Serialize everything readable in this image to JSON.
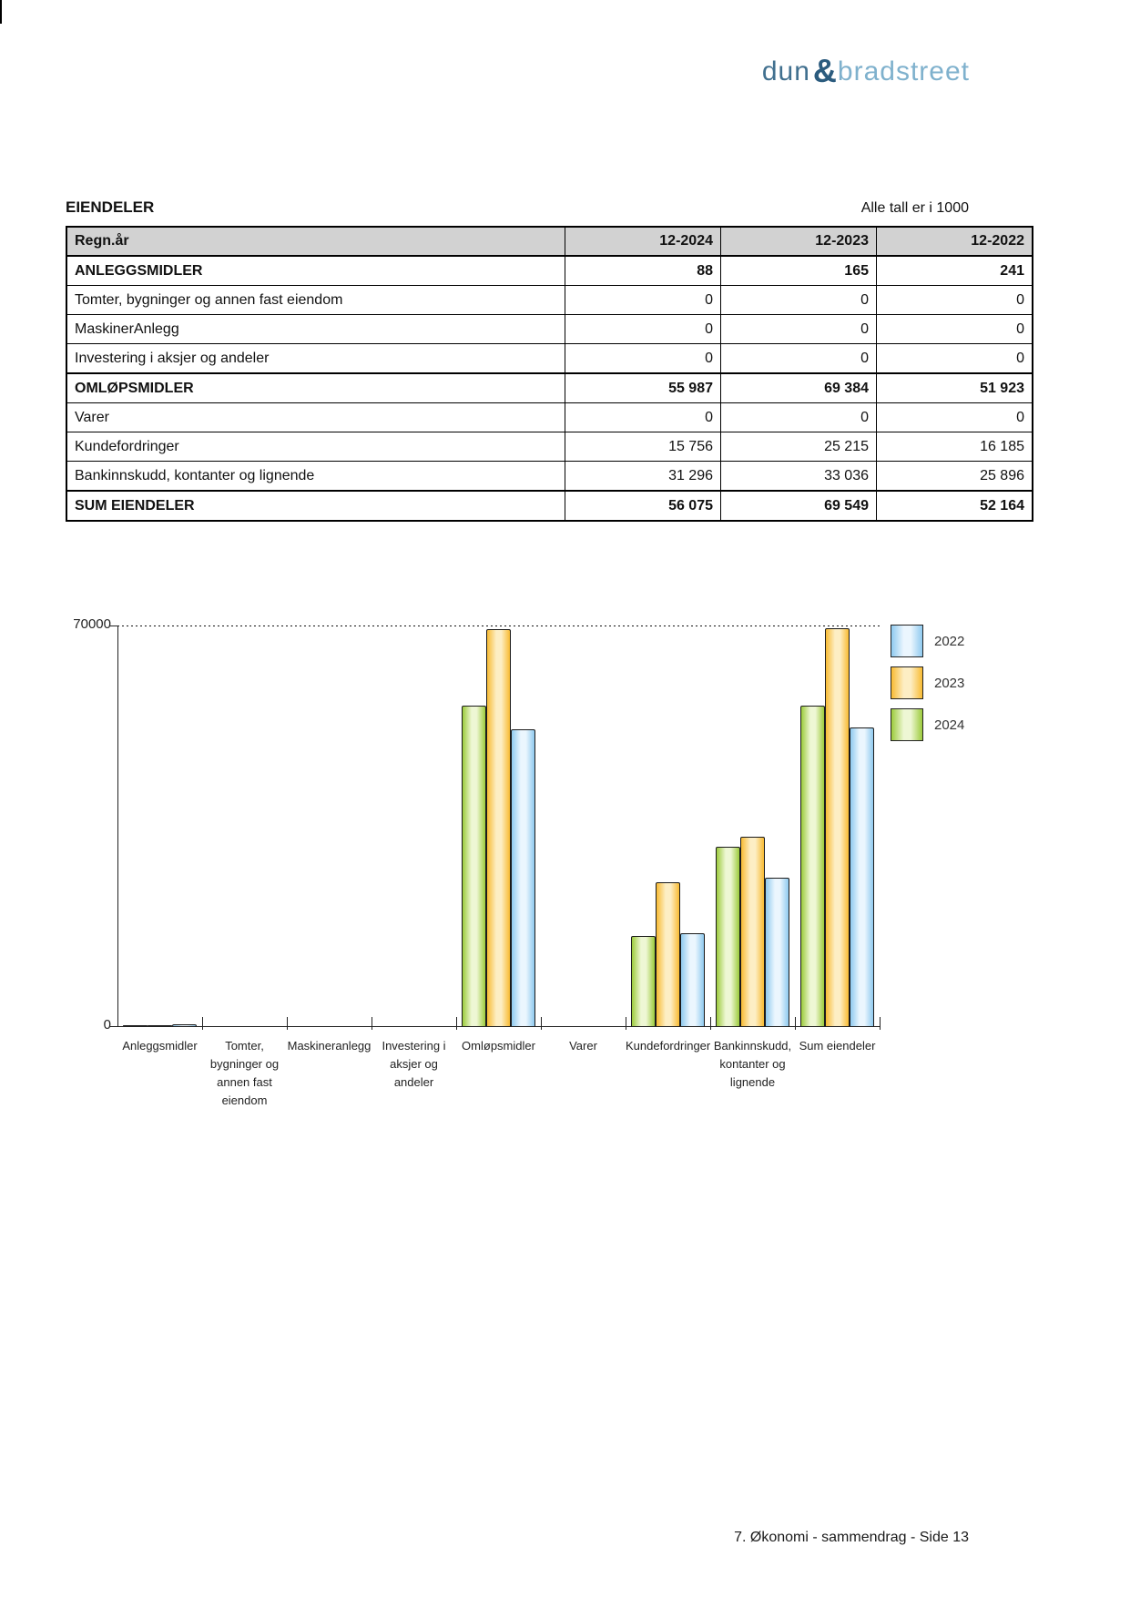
{
  "logo": {
    "part1": "dun",
    "amp": "&",
    "part2": "bradstreet",
    "colors": {
      "dun": "#41708f",
      "amp": "#2b5b7e",
      "bradstreet": "#7fb1cd"
    }
  },
  "section": {
    "title": "EIENDELER",
    "note": "Alle tall er i 1000"
  },
  "table": {
    "header_bg": "#d2d2d2",
    "columns": [
      "Regn.år",
      "12-2024",
      "12-2023",
      "12-2022"
    ],
    "rows": [
      {
        "label": "ANLEGGSMIDLER",
        "bold": true,
        "values": [
          "88",
          "165",
          "241"
        ]
      },
      {
        "label": "Tomter, bygninger og annen fast eiendom",
        "bold": false,
        "values": [
          "0",
          "0",
          "0"
        ]
      },
      {
        "label": "MaskinerAnlegg",
        "bold": false,
        "values": [
          "0",
          "0",
          "0"
        ]
      },
      {
        "label": "Investering i aksjer og andeler",
        "bold": false,
        "values": [
          "0",
          "0",
          "0"
        ]
      },
      {
        "label": "OMLØPSMIDLER",
        "bold": true,
        "values": [
          "55 987",
          "69 384",
          "51 923"
        ]
      },
      {
        "label": "Varer",
        "bold": false,
        "values": [
          "0",
          "0",
          "0"
        ]
      },
      {
        "label": "Kundefordringer",
        "bold": false,
        "values": [
          "15 756",
          "25 215",
          "16 185"
        ]
      },
      {
        "label": "Bankinnskudd, kontanter og lignende",
        "bold": false,
        "values": [
          "31 296",
          "33 036",
          "25 896"
        ]
      },
      {
        "label": "SUM EIENDELER",
        "bold": true,
        "values": [
          "56 075",
          "69 549",
          "52 164"
        ]
      }
    ]
  },
  "chart_data": {
    "type": "bar",
    "title": "",
    "xlabel": "",
    "ylabel": "",
    "ylim": [
      0,
      70000
    ],
    "yticks": [
      {
        "value": 70000,
        "label": "70000"
      },
      {
        "value": 0,
        "label": "0"
      }
    ],
    "grid": "dotted-top-only",
    "legend_position": "right",
    "categories": [
      "Anleggsmidler",
      "Tomter, bygninger og annen fast eiendom",
      "Maskineranlegg",
      "Investering i aksjer og andeler",
      "Omløpsmidler",
      "Varer",
      "Kundefordringer",
      "Bankinnskudd, kontanter og lignende",
      "Sum eiendeler"
    ],
    "series": [
      {
        "name": "2024",
        "color_edge": "#9ccb3c",
        "color_light": "#eef7d4",
        "values": [
          88,
          0,
          0,
          0,
          55987,
          0,
          15756,
          31296,
          56075
        ]
      },
      {
        "name": "2023",
        "color_edge": "#f8bb33",
        "color_light": "#fdeec4",
        "values": [
          165,
          0,
          0,
          0,
          69384,
          0,
          25215,
          33036,
          69549
        ]
      },
      {
        "name": "2022",
        "color_edge": "#8fcaef",
        "color_light": "#ebf6fe",
        "values": [
          241,
          0,
          0,
          0,
          51923,
          0,
          16185,
          25896,
          52164
        ]
      }
    ],
    "legend": [
      {
        "label": "2022"
      },
      {
        "label": "2023"
      },
      {
        "label": "2024"
      }
    ]
  },
  "page": {
    "footer": "7. Økonomi - sammendrag - Side 13"
  }
}
